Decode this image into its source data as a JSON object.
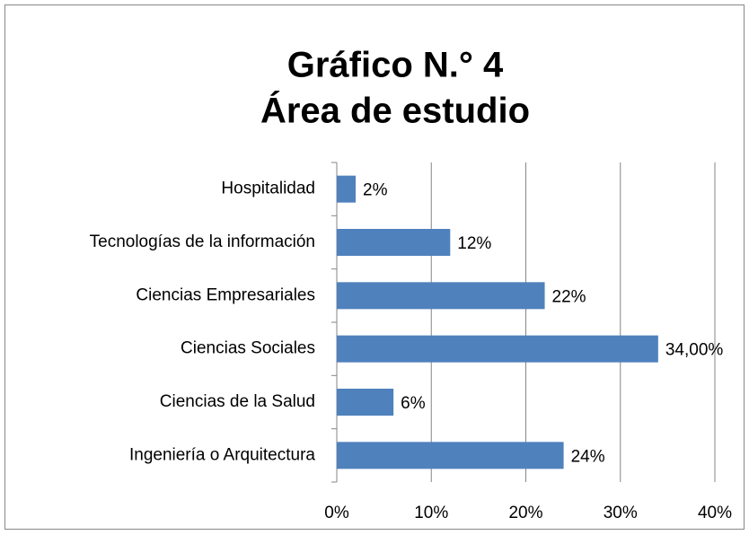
{
  "chart_data": {
    "type": "bar",
    "orientation": "horizontal",
    "title": "Gráfico N.° 4",
    "subtitle": "Área de estudio",
    "categories": [
      "Hospitalidad",
      "Tecnologías de la información",
      "Ciencias Empresariales",
      "Ciencias Sociales",
      "Ciencias de la Salud",
      "Ingeniería o Arquitectura"
    ],
    "values": [
      2,
      12,
      22,
      34,
      6,
      24
    ],
    "value_labels": [
      "2%",
      "12%",
      "22%",
      "34,00%",
      "6%",
      "24%"
    ],
    "color": "#4f81bd",
    "xlim": [
      0,
      40
    ],
    "xticks": [
      {
        "value": 0,
        "label": "0%"
      },
      {
        "value": 10,
        "label": "10%"
      },
      {
        "value": 20,
        "label": "20%"
      },
      {
        "value": 30,
        "label": "30%"
      },
      {
        "value": 40,
        "label": "40%"
      }
    ],
    "grid": true
  }
}
